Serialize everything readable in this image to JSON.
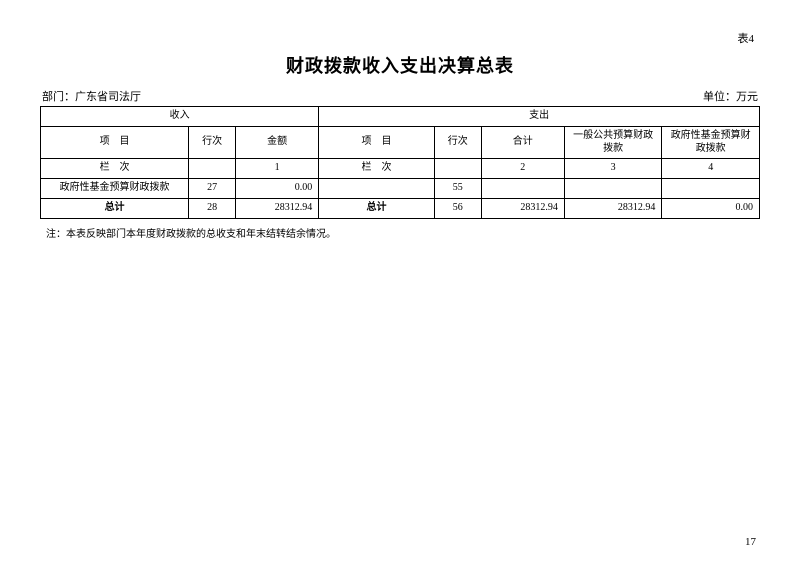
{
  "table_number": "表4",
  "title": "财政拨款收入支出决算总表",
  "dept_label": "部门：",
  "dept_name": "广东省司法厅",
  "unit_label": "单位：万元",
  "headers": {
    "income": "收入",
    "expense": "支出",
    "item": "项　目",
    "row_no": "行次",
    "amount": "金额",
    "total": "合计",
    "general_budget": "一般公共预算财政拨款",
    "gov_fund_budget": "政府性基金预算财政拨款",
    "col_label": "栏　次"
  },
  "col_numbers": {
    "income_amount": "1",
    "expense_total": "2",
    "expense_general": "3",
    "expense_gov": "4"
  },
  "rows": {
    "gov_fund_income_label": "政府性基金预算财政拨款",
    "gov_fund_income_row": "27",
    "gov_fund_income_amount": "0.00",
    "expense_blank_row": "55",
    "income_total_label": "总计",
    "income_total_row": "28",
    "income_total_amount": "28312.94",
    "expense_total_label": "总计",
    "expense_total_row": "56",
    "expense_total_total": "28312.94",
    "expense_total_general": "28312.94",
    "expense_total_gov": "0.00"
  },
  "note_prefix": "注：",
  "note_text": "本表反映部门本年度财政拨款的总收支和年末结转结余情况。",
  "page_number": "17",
  "colors": {
    "text": "#000000",
    "border": "#000000",
    "background": "#ffffff"
  },
  "typography": {
    "title_fontsize_pt": 14,
    "body_fontsize_pt": 8,
    "font_family": "SimSun"
  }
}
